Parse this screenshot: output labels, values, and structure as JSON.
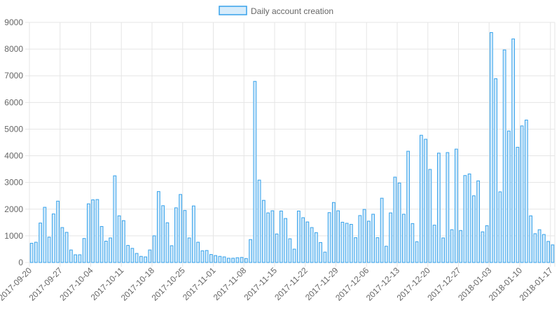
{
  "chart_data": {
    "type": "bar",
    "title": "",
    "xlabel": "",
    "ylabel": "",
    "legend": {
      "position": "top",
      "label": "Daily account creation"
    },
    "colors": {
      "bar_fill": "#d7ecfb",
      "bar_stroke": "#36a2eb",
      "grid": "#e5e5e5",
      "text": "#666666"
    },
    "ylim": [
      0,
      9000
    ],
    "y_ticks": [
      "0",
      "1000",
      "2000",
      "3000",
      "4000",
      "5000",
      "6000",
      "7000",
      "8000",
      "9000"
    ],
    "x_tick_labels": [
      {
        "index": 0,
        "label": "2017-09-20"
      },
      {
        "index": 7,
        "label": "2017-09-27"
      },
      {
        "index": 14,
        "label": "2017-10-04"
      },
      {
        "index": 21,
        "label": "2017-10-11"
      },
      {
        "index": 28,
        "label": "2017-10-18"
      },
      {
        "index": 35,
        "label": "2017-10-25"
      },
      {
        "index": 42,
        "label": "2017-11-01"
      },
      {
        "index": 49,
        "label": "2017-11-08"
      },
      {
        "index": 56,
        "label": "2017-11-15"
      },
      {
        "index": 63,
        "label": "2017-11-22"
      },
      {
        "index": 70,
        "label": "2017-11-29"
      },
      {
        "index": 77,
        "label": "2017-12-06"
      },
      {
        "index": 84,
        "label": "2017-12-13"
      },
      {
        "index": 91,
        "label": "2017-12-20"
      },
      {
        "index": 98,
        "label": "2017-12-27"
      },
      {
        "index": 105,
        "label": "2018-01-03"
      },
      {
        "index": 112,
        "label": "2018-01-10"
      },
      {
        "index": 119,
        "label": "2018-01-17"
      }
    ],
    "start_date": "2017-09-20",
    "values": [
      720,
      760,
      1480,
      2070,
      950,
      1820,
      2300,
      1310,
      1130,
      470,
      290,
      290,
      900,
      2200,
      2350,
      2360,
      1350,
      800,
      920,
      3250,
      1750,
      1570,
      640,
      530,
      340,
      230,
      210,
      470,
      1000,
      2660,
      2130,
      1490,
      630,
      2050,
      2550,
      1950,
      920,
      2120,
      760,
      440,
      450,
      300,
      260,
      230,
      210,
      160,
      160,
      180,
      190,
      150,
      860,
      6790,
      3090,
      2330,
      1860,
      1940,
      1070,
      1930,
      1650,
      890,
      500,
      1930,
      1680,
      1520,
      1310,
      1120,
      750,
      390,
      1870,
      2250,
      1940,
      1510,
      1470,
      1430,
      930,
      1760,
      1990,
      1550,
      1810,
      930,
      2410,
      610,
      1860,
      3200,
      2980,
      1810,
      4170,
      1460,
      780,
      4770,
      4620,
      3490,
      1400,
      4100,
      920,
      4120,
      1230,
      4250,
      1200,
      3260,
      3320,
      2500,
      3060,
      1150,
      1380,
      8620,
      6890,
      2650,
      7970,
      4930,
      8380,
      4320,
      5120,
      5340,
      1750,
      1080,
      1230,
      1050,
      790,
      660
    ]
  }
}
